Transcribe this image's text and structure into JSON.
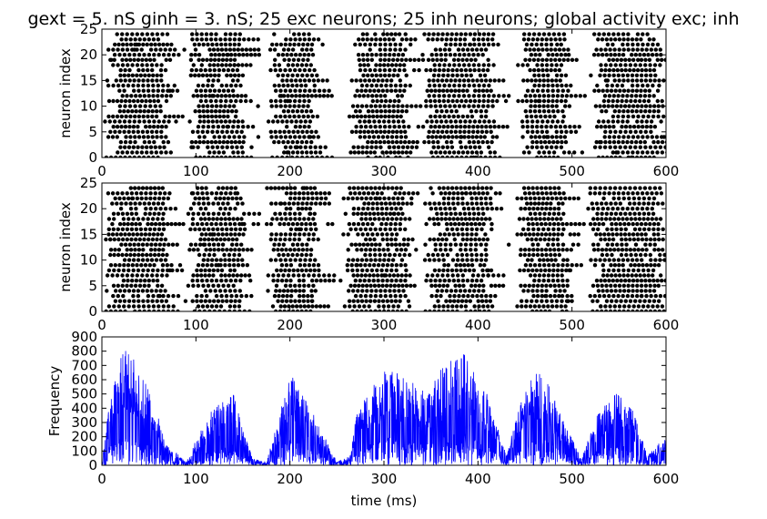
{
  "title": "gext = 5. nS ginh = 3. nS; 25 exc neurons; 25 inh neurons; global activity exc; inh",
  "chart_data": [
    {
      "type": "scatter",
      "name": "raster-exc",
      "ylabel": "neuron index",
      "xlabel": "",
      "xlim": [
        0,
        600
      ],
      "ylim": [
        0,
        25
      ],
      "xticks": [
        "0",
        "100",
        "200",
        "300",
        "400",
        "500",
        "600"
      ],
      "yticks": [
        "0",
        "5",
        "10",
        "15",
        "20",
        "25"
      ],
      "marker_color": "#000000",
      "neurons": 25,
      "bursts": [
        {
          "start": 2,
          "end": 75
        },
        {
          "start": 90,
          "end": 155
        },
        {
          "start": 175,
          "end": 235
        },
        {
          "start": 262,
          "end": 330
        },
        {
          "start": 340,
          "end": 420
        },
        {
          "start": 440,
          "end": 500
        },
        {
          "start": 520,
          "end": 600
        }
      ]
    },
    {
      "type": "scatter",
      "name": "raster-inh",
      "ylabel": "neuron index",
      "xlabel": "",
      "xlim": [
        0,
        600
      ],
      "ylim": [
        0,
        25
      ],
      "xticks": [
        "0",
        "100",
        "200",
        "300",
        "400",
        "500",
        "600"
      ],
      "yticks": [
        "0",
        "5",
        "10",
        "15",
        "20",
        "25"
      ],
      "marker_color": "#000000",
      "neurons": 25,
      "bursts": [
        {
          "start": 2,
          "end": 75
        },
        {
          "start": 90,
          "end": 155
        },
        {
          "start": 175,
          "end": 235
        },
        {
          "start": 255,
          "end": 330
        },
        {
          "start": 340,
          "end": 420
        },
        {
          "start": 440,
          "end": 500
        },
        {
          "start": 515,
          "end": 600
        }
      ]
    },
    {
      "type": "line",
      "name": "global-activity",
      "ylabel": "Frequency",
      "xlabel": "time (ms)",
      "xlim": [
        0,
        600
      ],
      "ylim": [
        0,
        900
      ],
      "xticks": [
        "0",
        "100",
        "200",
        "300",
        "400",
        "500",
        "600"
      ],
      "yticks": [
        "0",
        "100",
        "200",
        "300",
        "400",
        "500",
        "600",
        "700",
        "800",
        "900"
      ],
      "color": "#0000ff",
      "envelope": {
        "x": [
          0,
          10,
          25,
          45,
          70,
          90,
          100,
          120,
          140,
          160,
          175,
          200,
          225,
          250,
          265,
          270,
          300,
          330,
          345,
          360,
          385,
          410,
          430,
          445,
          465,
          490,
          510,
          525,
          545,
          565,
          580,
          600
        ],
        "y": [
          0,
          480,
          700,
          520,
          120,
          20,
          150,
          350,
          420,
          40,
          20,
          540,
          300,
          20,
          60,
          300,
          570,
          500,
          420,
          560,
          680,
          420,
          60,
          360,
          600,
          280,
          40,
          280,
          450,
          320,
          60,
          170
        ]
      }
    }
  ]
}
